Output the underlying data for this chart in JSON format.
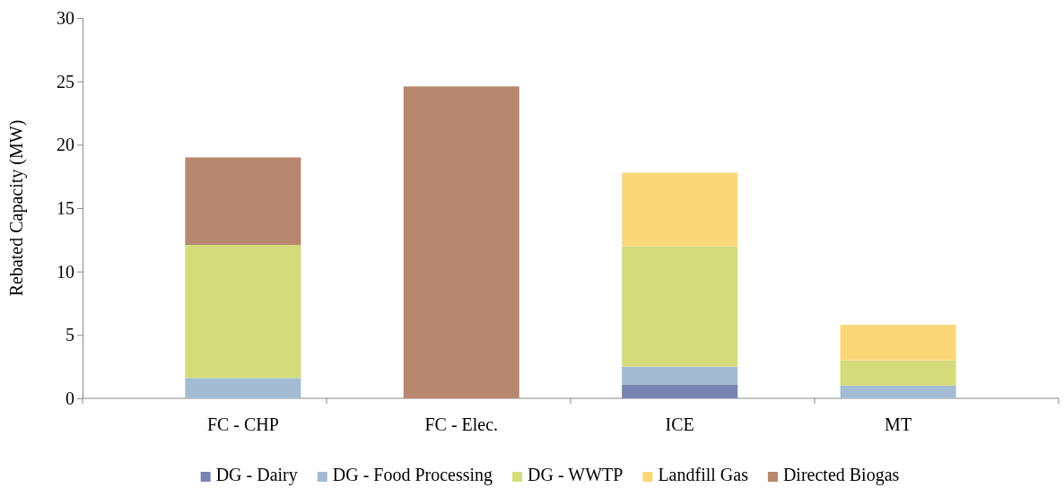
{
  "chart_data": {
    "type": "bar",
    "stacked": true,
    "ylabel": "Rebated Capacity (MW)",
    "categories": [
      "FC - CHP",
      "FC - Elec.",
      "ICE",
      "MT"
    ],
    "series": [
      {
        "name": "DG - Dairy",
        "color": "#7884b0",
        "values": [
          null,
          null,
          1.1,
          null
        ]
      },
      {
        "name": "DG - Food Processing",
        "color": "#a3bcd4",
        "values": [
          1.6,
          null,
          1.4,
          1.0
        ]
      },
      {
        "name": "DG - WWTP",
        "color": "#d4db7b",
        "values": [
          10.5,
          null,
          9.5,
          2.0
        ]
      },
      {
        "name": "Landfill Gas",
        "color": "#fad87a",
        "values": [
          null,
          null,
          5.8,
          2.8
        ]
      },
      {
        "name": "Directed Biogas",
        "color": "#b8876f",
        "values": [
          6.9,
          24.6,
          null,
          null
        ]
      }
    ],
    "ylim": [
      0,
      30
    ],
    "yticks": [
      0,
      5,
      10,
      15,
      20,
      25,
      30
    ],
    "grid": false,
    "legend": "bottom"
  }
}
